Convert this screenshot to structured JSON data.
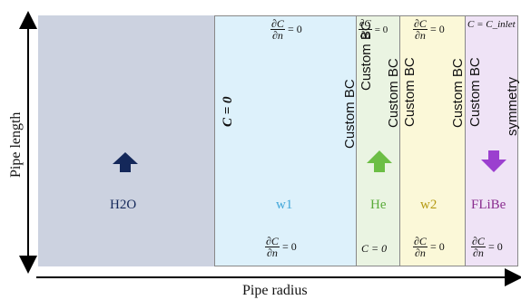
{
  "axes": {
    "y_label": "Pipe length",
    "x_label": "Pipe radius"
  },
  "regions": {
    "h2o": {
      "label": "H2O",
      "arrow_color": "#14285a"
    },
    "w1": {
      "label": "w1",
      "color": "#3fa6d9"
    },
    "he": {
      "label": "He",
      "color": "#5aab3a",
      "arrow_color": "#6cbe45"
    },
    "w2": {
      "label": "w2",
      "color": "#b59a13"
    },
    "flibe": {
      "label": "FLiBe",
      "color": "#8a2d8f",
      "arrow_color": "#9b3fcf"
    }
  },
  "boundary_conditions": {
    "c_zero": "C = 0",
    "custom_bc": "Custom BC",
    "symmetry": "symmetry",
    "inlet": "C = C_inlet",
    "flux_num": "∂C",
    "flux_den": "∂n",
    "flux_rhs": "= 0"
  }
}
